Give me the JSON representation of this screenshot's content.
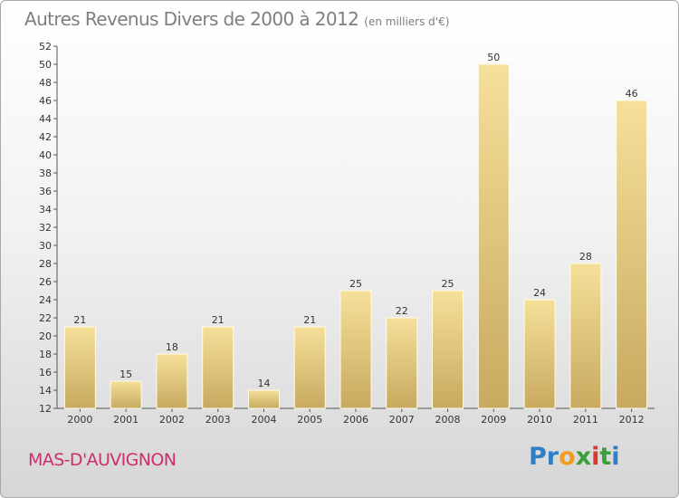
{
  "header": {
    "title": "Autres Revenus Divers de 2000 à 2012",
    "unit": "(en milliers d'€)"
  },
  "footer": {
    "commune": "MAS-D'AUVIGNON",
    "logo_letters": [
      {
        "ch": "P",
        "color": "#2f7fc8"
      },
      {
        "ch": "r",
        "color": "#2f7fc8"
      },
      {
        "ch": "o",
        "color": "#f29b1f"
      },
      {
        "ch": "x",
        "color": "#3aa03a"
      },
      {
        "ch": "i",
        "color": "#d63a2c"
      },
      {
        "ch": "t",
        "color": "#3aa03a"
      },
      {
        "ch": "i",
        "color": "#2f7fc8"
      }
    ]
  },
  "chart_data": {
    "type": "bar",
    "title": "Autres Revenus Divers de 2000 à 2012",
    "subtitle": "(en milliers d'€)",
    "xlabel": "",
    "ylabel": "",
    "categories": [
      "2000",
      "2001",
      "2002",
      "2003",
      "2004",
      "2005",
      "2006",
      "2007",
      "2008",
      "2009",
      "2010",
      "2011",
      "2012"
    ],
    "values": [
      21,
      15,
      18,
      21,
      14,
      21,
      25,
      22,
      25,
      50,
      24,
      28,
      46
    ],
    "ylim": [
      12,
      52
    ],
    "yticks": [
      12,
      14,
      16,
      18,
      20,
      22,
      24,
      26,
      28,
      30,
      32,
      34,
      36,
      38,
      40,
      42,
      44,
      46,
      48,
      50,
      52
    ],
    "grid": false,
    "bar_colors": {
      "top": "#f5e09a",
      "bottom": "#c8a95f",
      "edge": "#fffbe8"
    }
  }
}
